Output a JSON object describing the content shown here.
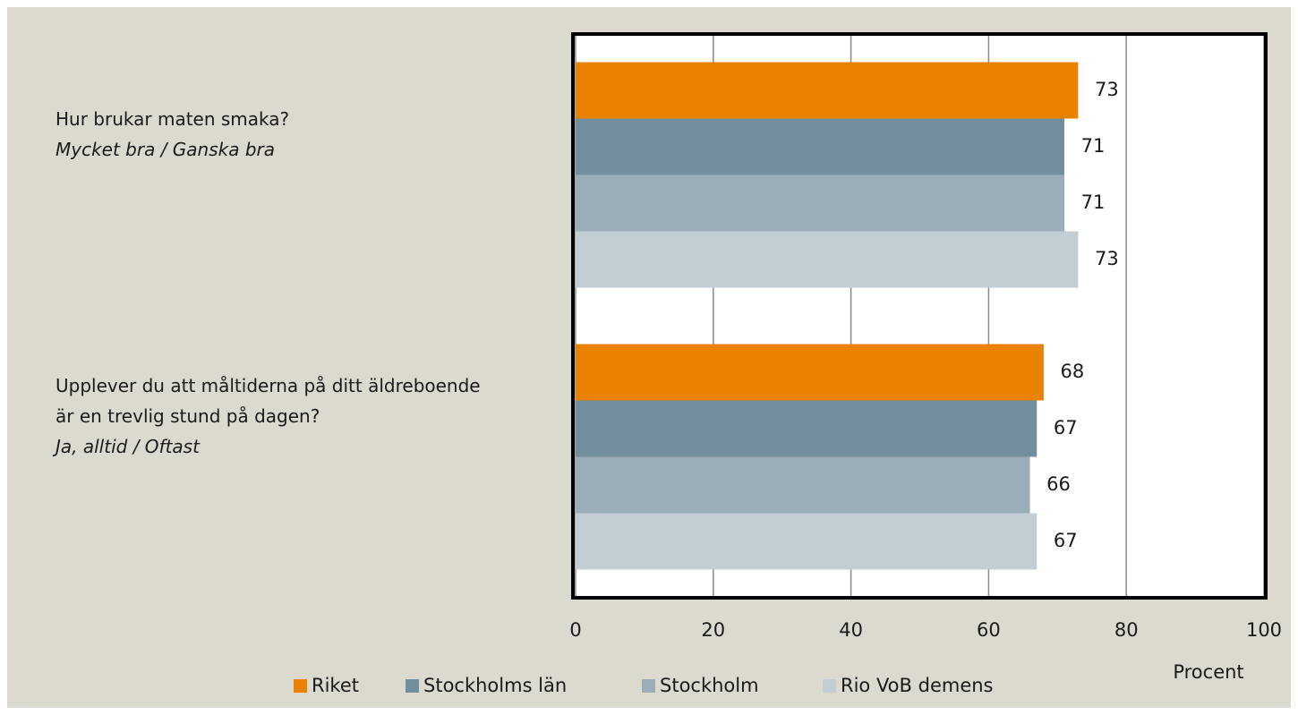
{
  "chart_data": {
    "type": "barh",
    "categories": [
      "Hur brukar maten smaka?",
      "Upplever du att måltiderna på ditt äldreboende är en trevlig stund på dagen?"
    ],
    "category_notes": [
      "Mycket bra / Ganska bra",
      "Ja, alltid / Oftast"
    ],
    "series": [
      {
        "name": "Riket",
        "color": "#e88200",
        "values": [
          73,
          68
        ]
      },
      {
        "name": "Stockholms län",
        "color": "#738f9e",
        "values": [
          71,
          67
        ]
      },
      {
        "name": "Stockholm",
        "color": "#9aadb8",
        "values": [
          71,
          66
        ]
      },
      {
        "name": "Rio VoB demens",
        "color": "#c3ced4",
        "values": [
          73,
          67
        ]
      }
    ],
    "xlim": [
      0,
      100
    ],
    "xticks": [
      0,
      20,
      40,
      60,
      80,
      100
    ],
    "x_label": "Procent",
    "grid": true,
    "legend": "bottom"
  }
}
